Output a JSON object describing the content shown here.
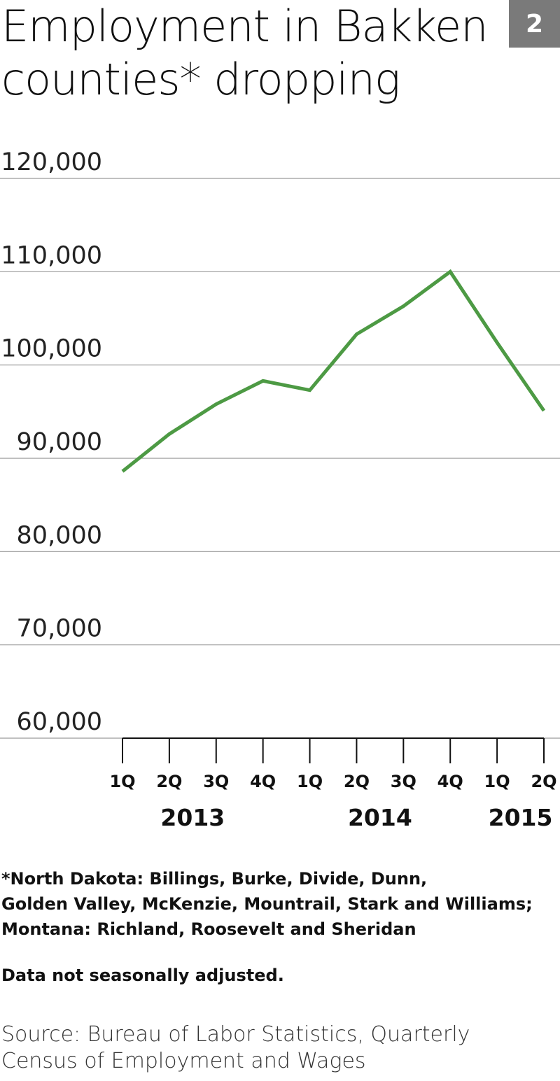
{
  "header": {
    "title": "Employment in Bakken counties* dropping",
    "badge": "2"
  },
  "chart_data": {
    "type": "line",
    "title": "Employment in Bakken counties* dropping",
    "xlabel": "",
    "ylabel": "",
    "categories": [
      "1Q",
      "2Q",
      "3Q",
      "4Q",
      "1Q",
      "2Q",
      "3Q",
      "4Q",
      "1Q",
      "2Q"
    ],
    "years": [
      {
        "label": "2013",
        "first": 0,
        "last": 3
      },
      {
        "label": "2014",
        "first": 4,
        "last": 7
      },
      {
        "label": "2015",
        "first": 8,
        "last": 9
      }
    ],
    "series": [
      {
        "values": [
          88600,
          92600,
          95800,
          98300,
          97300,
          103300,
          106300,
          110000,
          102400,
          95100
        ]
      }
    ],
    "ylim": [
      60000,
      120000
    ],
    "yticks": [
      120000,
      110000,
      100000,
      90000,
      80000,
      70000,
      60000
    ],
    "ytick_labels": [
      "120,000",
      "110,000",
      "100,000",
      "90,000",
      "80,000",
      "70,000",
      "60,000"
    ],
    "grid": true,
    "legend": "none",
    "line_color": "#4d9a44",
    "grid_color": "#9a9a9a"
  },
  "footer": {
    "footnote_lines": [
      "*North Dakota: Billings, Burke, Divide, Dunn,",
      "Golden Valley, McKenzie, Mountrail, Stark and Williams;",
      "Montana: Richland, Roosevelt and Sheridan"
    ],
    "note": "Data not seasonally adjusted.",
    "source_lines": [
      "Source: Bureau of Labor Statistics, Quarterly",
      "Census of Employment and Wages"
    ]
  }
}
